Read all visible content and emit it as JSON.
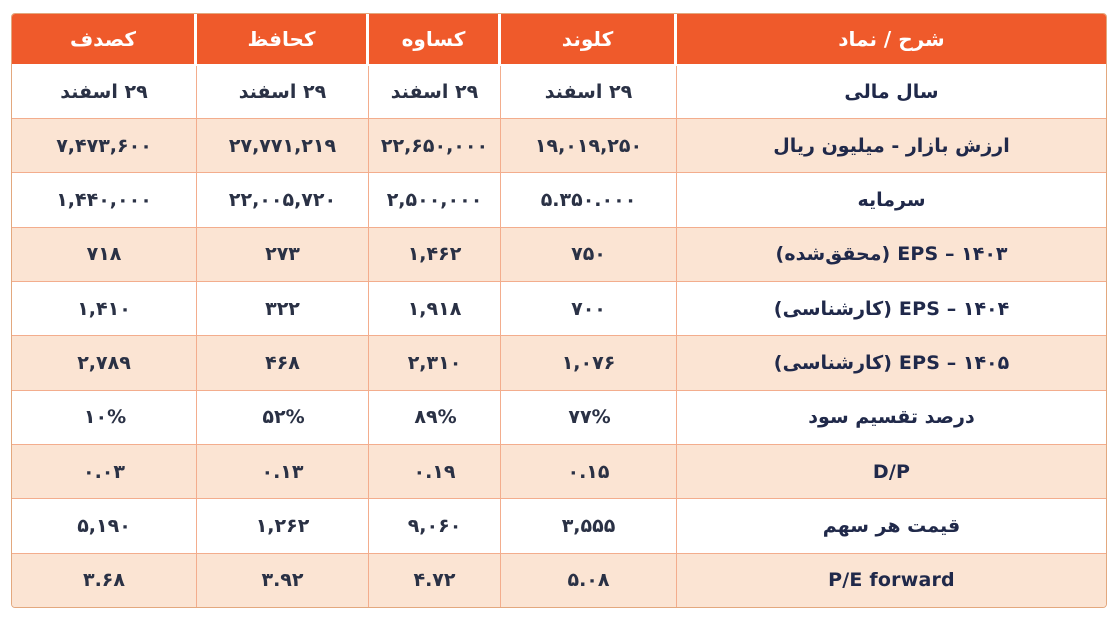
{
  "colors": {
    "header_bg": "#EF5A2B",
    "header_text": "#FFFFFF",
    "row_white_bg": "#FFFFFF",
    "row_peach_bg": "#FBE4D3",
    "inner_border": "#F3AD8D",
    "outer_border": "#E3A87E",
    "label_text": "#20294A",
    "value_text": "#2A3145"
  },
  "chart_data": {
    "type": "table",
    "columns": [
      "شرح / نماد",
      "کلوند",
      "کساوه",
      "کحافظ",
      "کصدف"
    ],
    "rows": [
      {
        "label": "سال مالی",
        "values": [
          "۲۹ اسفند",
          "۲۹ اسفند",
          "۲۹ اسفند",
          "۲۹ اسفند"
        ]
      },
      {
        "label": "ارزش بازار -  میلیون ریال",
        "values": [
          "۱۹,۰۱۹,۲۵۰",
          "۲۲,۶۵۰,۰۰۰",
          "۲۷,۷۷۱,۲۱۹",
          "۷,۴۷۳,۶۰۰"
        ]
      },
      {
        "label": "سرمایه",
        "values": [
          "۵.۳۵۰.۰۰۰",
          "۲,۵۰۰,۰۰۰",
          "۲۲,۰۰۵,۷۲۰",
          "۱,۴۴۰,۰۰۰"
        ]
      },
      {
        "label": "۱۴۰۳ – EPS (محقق‌شده)",
        "values": [
          "۷۵۰",
          "۱,۴۶۲",
          "۲۷۳",
          "۷۱۸"
        ]
      },
      {
        "label": "۱۴۰۴ – EPS (کارشناسی)",
        "values": [
          "۷۰۰",
          "۱,۹۱۸",
          "۳۲۲",
          "۱,۴۱۰"
        ]
      },
      {
        "label": "۱۴۰۵ – EPS (کارشناسی)",
        "values": [
          "۱,۰۷۶",
          "۲,۳۱۰",
          "۴۶۸",
          "۲,۷۸۹"
        ]
      },
      {
        "label": "درصد تقسیم سود",
        "values": [
          "۷۷%",
          "۸۹%",
          "۵۲%",
          "۱۰%"
        ]
      },
      {
        "label": "D/P",
        "values": [
          "۰.۱۵",
          "۰.۱۹",
          "۰.۱۳",
          "۰.۰۳"
        ]
      },
      {
        "label": "قیمت هر سهم",
        "values": [
          "۳,۵۵۵",
          "۹,۰۶۰",
          "۱,۲۶۲",
          "۵,۱۹۰"
        ]
      },
      {
        "label": "P/E  forward",
        "values": [
          "۵.۰۸",
          "۴.۷۲",
          "۳.۹۲",
          "۳.۶۸"
        ]
      }
    ]
  }
}
